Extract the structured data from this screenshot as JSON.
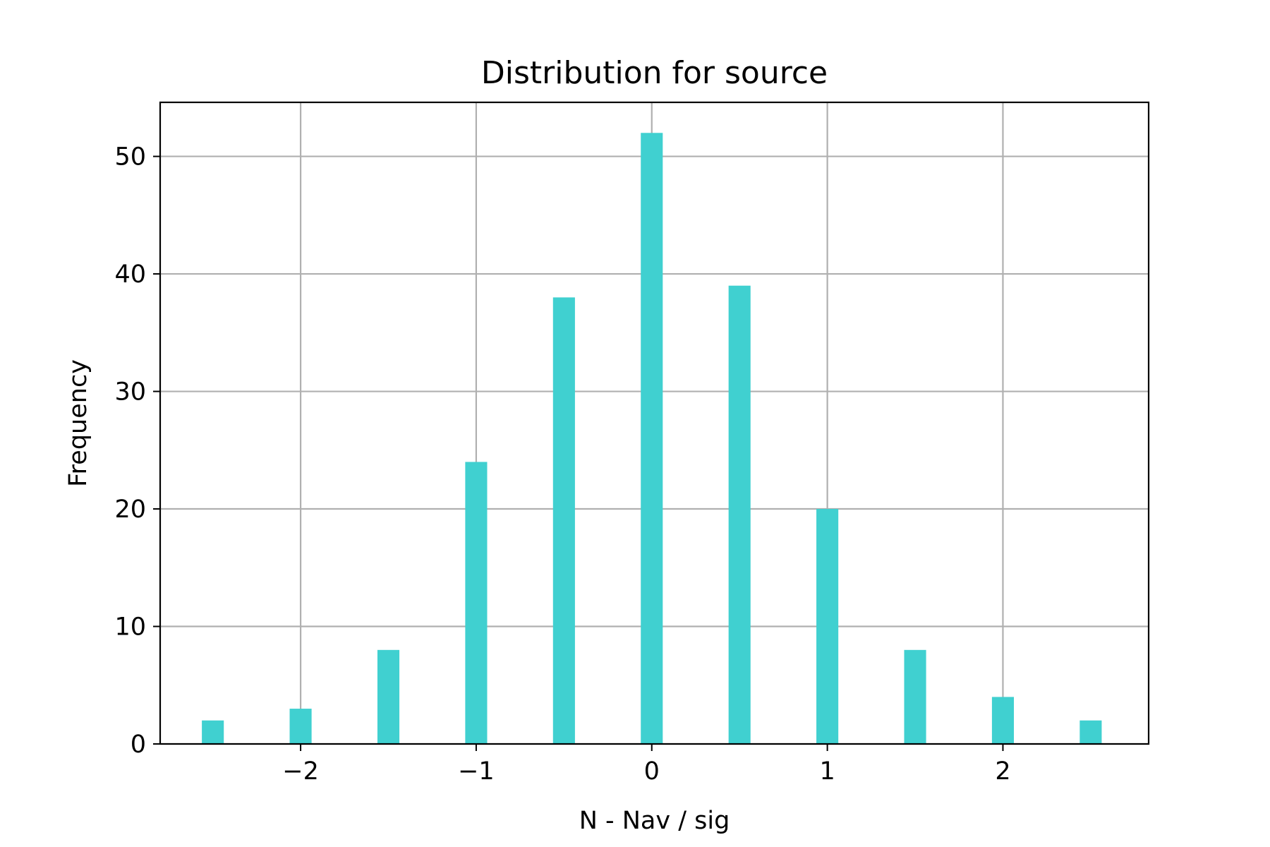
{
  "chart_data": {
    "type": "bar",
    "title": "Distribution for source",
    "xlabel": "N - Nav / sig",
    "ylabel": "Frequency",
    "x": [
      -2.5,
      -2.0,
      -1.5,
      -1.0,
      -0.5,
      0.0,
      0.5,
      1.0,
      1.5,
      2.0,
      2.5
    ],
    "values": [
      2,
      3,
      8,
      24,
      38,
      52,
      39,
      20,
      8,
      4,
      2
    ],
    "bar_width": 0.125,
    "xlim": [
      -2.8,
      2.83
    ],
    "ylim": [
      0,
      54.6
    ],
    "xticks": [
      -2,
      -1,
      0,
      1,
      2
    ],
    "xtick_labels": [
      "−2",
      "−1",
      "0",
      "1",
      "2"
    ],
    "yticks": [
      0,
      10,
      20,
      30,
      40,
      50
    ],
    "ytick_labels": [
      "0",
      "10",
      "20",
      "30",
      "40",
      "50"
    ],
    "grid": true,
    "bar_color": "#40d0d0"
  }
}
